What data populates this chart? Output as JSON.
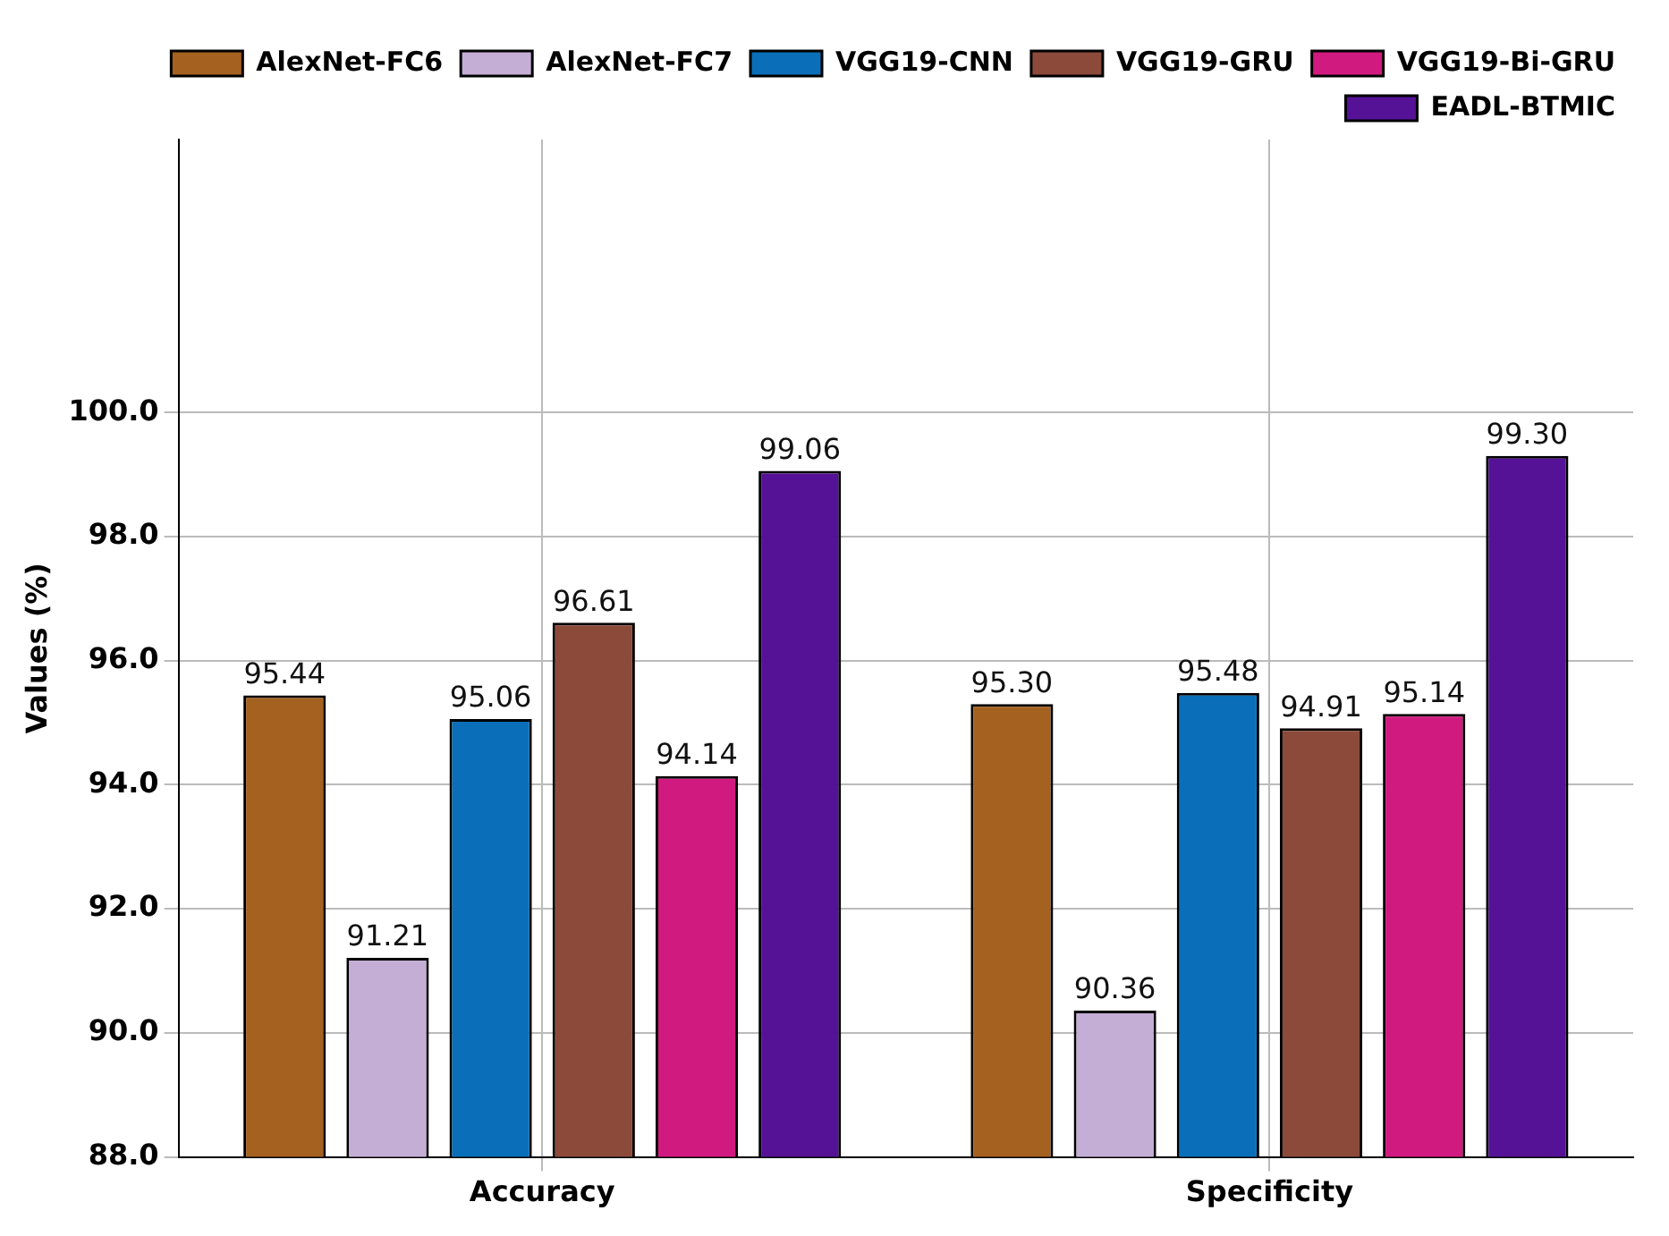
{
  "chart_data": {
    "type": "bar",
    "ylabel": "Values (%)",
    "categories": [
      "Accuracy",
      "Specificity"
    ],
    "series": [
      {
        "name": "AlexNet-FC6",
        "color": "#a5611f",
        "values": [
          95.44,
          95.3
        ],
        "value_labels": [
          "95.44",
          "95.30"
        ]
      },
      {
        "name": "AlexNet-FC7",
        "color": "#c5aed6",
        "values": [
          91.21,
          90.36
        ],
        "value_labels": [
          "91.21",
          "90.36"
        ]
      },
      {
        "name": "VGG19-CNN",
        "color": "#0a6fb8",
        "values": [
          95.06,
          95.48
        ],
        "value_labels": [
          "95.06",
          "95.48"
        ]
      },
      {
        "name": "VGG19-GRU",
        "color": "#8b4a3a",
        "values": [
          96.61,
          94.91
        ],
        "value_labels": [
          "96.61",
          "94.91"
        ]
      },
      {
        "name": "VGG19-Bi-GRU",
        "color": "#d11a7f",
        "values": [
          94.14,
          95.14
        ],
        "value_labels": [
          "94.14",
          "95.14"
        ]
      },
      {
        "name": "EADL-BTMIC",
        "color": "#551296",
        "values": [
          99.06,
          99.3
        ],
        "value_labels": [
          "99.06",
          "99.30"
        ]
      }
    ],
    "ylim": [
      88,
      104.4
    ],
    "yticks": [
      {
        "value": 88,
        "label": "88.0"
      },
      {
        "value": 90,
        "label": "90.0"
      },
      {
        "value": 92,
        "label": "92.0"
      },
      {
        "value": 94,
        "label": "94.0"
      },
      {
        "value": 96,
        "label": "96.0"
      },
      {
        "value": 98,
        "label": "98.0"
      },
      {
        "value": 100,
        "label": "100.0"
      }
    ],
    "grid": true,
    "legend": "top right"
  }
}
